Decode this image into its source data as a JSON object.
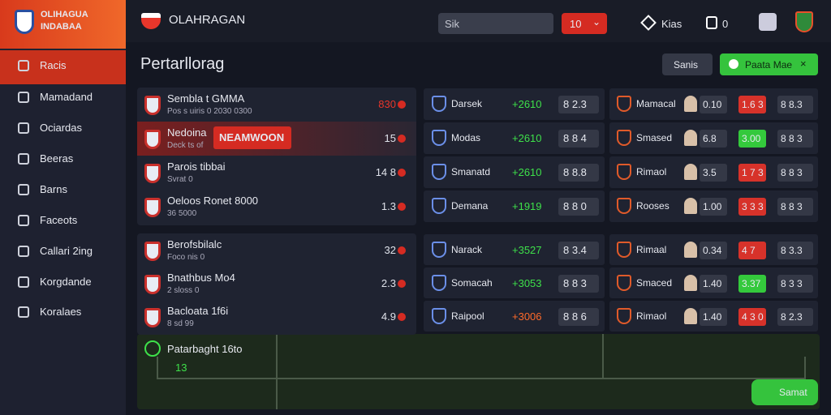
{
  "sidebar": {
    "logo": [
      "OLIHAGUA",
      "INDABAA"
    ],
    "menu": [
      "Racis",
      "Mamadand",
      "Ociardas",
      "Beeras",
      "Barns",
      "Faceots",
      "Callari 2ing",
      "Korgdande",
      "Koralaes"
    ]
  },
  "header": {
    "title": "OLAHRAGAN",
    "search": "Sik",
    "dropdown": "10",
    "user": "Kias",
    "counter": "0"
  },
  "page": {
    "title": "Pertarllorag",
    "button_secondary": "Sanis",
    "button_primary": "Paata Mae"
  },
  "matches": {
    "groups": [
      [
        {
          "name": "Sembla t GMMA",
          "sub": "Pos s uiris  0 2030 0300",
          "score": "830",
          "score_color": "#e8362b"
        },
        {
          "name": "Nedoina",
          "sub": "Deck ts of",
          "badge": "NEAMWOON",
          "score": "15",
          "score_color": "#dfe2ea"
        },
        {
          "name": "Parois tibbai",
          "sub": "Svrat 0",
          "score": "14 8",
          "score_color": "#dfe2ea"
        },
        {
          "name": "Oeloos Ronet 8000",
          "sub": "36 5000",
          "score": "1.3",
          "score_color": "#dfe2ea"
        }
      ],
      [
        {
          "name": "Berofsbilalc",
          "sub": "Foco nis 0",
          "score": "32",
          "score_color": "#dfe2ea"
        },
        {
          "name": "Bnathbus Mo4",
          "sub": "2 sloss 0",
          "score": "2.3",
          "score_color": "#dfe2ea"
        },
        {
          "name": "Bacloata 1f6i",
          "sub": "8 sd 99",
          "score": "4.9",
          "score_color": "#dfe2ea"
        }
      ]
    ]
  },
  "teams": {
    "groups": [
      [
        {
          "name": "Darsek",
          "change": "+2610",
          "change_color": "#3ee04a",
          "odds": "8 2.3"
        },
        {
          "name": "Modas",
          "change": "+2610",
          "change_color": "#3ee04a",
          "odds": "8 8 4"
        },
        {
          "name": "Smanatd",
          "change": "+2610",
          "change_color": "#3ee04a",
          "odds": "8 8.8"
        },
        {
          "name": "Demana",
          "change": "+1919",
          "change_color": "#3ee04a",
          "odds": "8 8 0"
        }
      ],
      [
        {
          "name": "Narack",
          "change": "+3527",
          "change_color": "#3ee04a",
          "odds": "8 3.4"
        },
        {
          "name": "Somacah",
          "change": "+3053",
          "change_color": "#3ee04a",
          "odds": "8 8 3"
        },
        {
          "name": "Raipool",
          "change": "+3006",
          "change_color": "#ff6a2a",
          "odds": "8 8 6"
        }
      ]
    ]
  },
  "markets": {
    "groups": [
      [
        {
          "name": "Mamacal",
          "o1": "0.10",
          "o2": "1.6 3",
          "o2_color": "#d7322a",
          "o3": "8 8.3"
        },
        {
          "name": "Smased",
          "o1": "6.8",
          "o2": "3.00",
          "o2_color": "#34c93c",
          "o3": "8 8 3"
        },
        {
          "name": "Rimaol",
          "o1": "3.5",
          "o2": "1 7 3",
          "o2_color": "#d7322a",
          "o3": "8 8 3"
        },
        {
          "name": "Rooses",
          "o1": "1.00",
          "o2": "3 3 3",
          "o2_color": "#d7322a",
          "o3": "8 8 3"
        }
      ],
      [
        {
          "name": "Rimaal",
          "o1": "0.34",
          "o2": "4 7",
          "o2_color": "#d7322a",
          "o3": "8 3.3"
        },
        {
          "name": "Smaced",
          "o1": "1.40",
          "o2": "3.37",
          "o2_color": "#34c93c",
          "o3": "8 3 3"
        },
        {
          "name": "Rimaol",
          "o1": "1.40",
          "o2": "4 3 0",
          "o2_color": "#d7322a",
          "o3": "8 2.3"
        }
      ]
    ]
  },
  "field": {
    "title": "Patarbaght 16to",
    "value": "13",
    "button": "Samat"
  }
}
